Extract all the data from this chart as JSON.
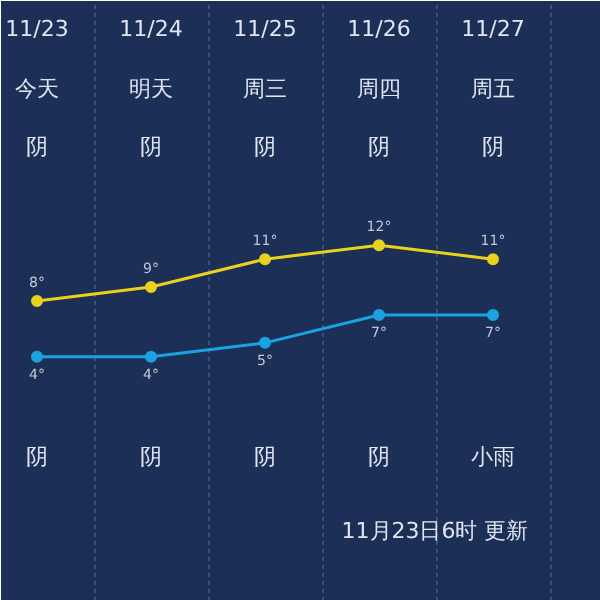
{
  "chart_data": {
    "type": "line",
    "categories": [
      "11/23",
      "11/24",
      "11/25",
      "11/26",
      "11/27"
    ],
    "series": [
      {
        "name": null,
        "color": "#e8d21c",
        "values": [
          8,
          9,
          11,
          12,
          11
        ],
        "value_labels": [
          "8°",
          "9°",
          "11°",
          "12°",
          "11°"
        ]
      },
      {
        "name": null,
        "color": "#1aa3e0",
        "values": [
          4,
          4,
          5,
          7,
          7
        ],
        "value_labels": [
          "4°",
          "4°",
          "5°",
          "7°",
          "7°"
        ]
      }
    ],
    "annotations": [
      "今天",
      "明天",
      "周三",
      "周四",
      "周五",
      "阴",
      "阴",
      "阴",
      "阴",
      "阴",
      "阴",
      "阴",
      "阴",
      "阴",
      "小雨",
      "11月23日6时 更新"
    ],
    "grid": "x",
    "marker": "circle",
    "line_style": "solid"
  }
}
